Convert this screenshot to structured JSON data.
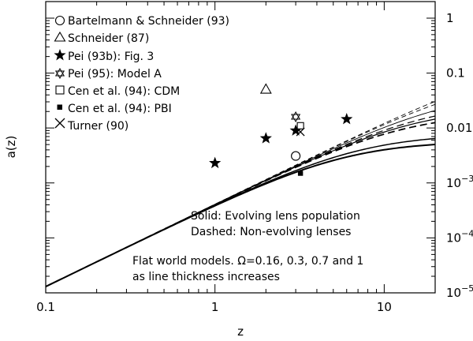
{
  "chart_data": {
    "type": "line",
    "x_scale": "log",
    "y_scale": "log",
    "xlim": [
      0.1,
      20
    ],
    "ylim": [
      1e-05,
      2
    ],
    "xlabel": "z",
    "ylabel": "a(z)",
    "x_ticks": [
      {
        "value": 0.1,
        "label": "0.1"
      },
      {
        "value": 1,
        "label": "1"
      },
      {
        "value": 10,
        "label": "10"
      }
    ],
    "y_ticks_right": [
      {
        "value": 1,
        "label": "1"
      },
      {
        "value": 0.1,
        "label": "0.1"
      },
      {
        "value": 0.01,
        "label": "0.01"
      },
      {
        "value": 0.001,
        "label": "10",
        "exp": "−3"
      },
      {
        "value": 0.0001,
        "label": "10",
        "exp": "−4"
      },
      {
        "value": 1e-05,
        "label": "10",
        "exp": "−5"
      }
    ],
    "series": [
      {
        "style": "dashed",
        "amplitude": 0.18,
        "alpha": 1.5
      },
      {
        "style": "dashed",
        "amplitude": 0.1,
        "alpha": 1.5
      },
      {
        "style": "dashed",
        "amplitude": 0.03,
        "alpha": 1.5
      },
      {
        "style": "dashed",
        "amplitude": 0.019,
        "alpha": 1.5
      },
      {
        "style": "solid",
        "amplitude": 0.048,
        "alpha": 1.5
      },
      {
        "style": "solid",
        "amplitude": 0.024,
        "alpha": 1.5
      },
      {
        "style": "solid",
        "amplitude": 0.0078,
        "alpha": 1.5
      },
      {
        "style": "solid",
        "amplitude": 0.0058,
        "alpha": 1.5
      }
    ],
    "points": [
      {
        "legend": "Bartelmann & Schneider (93)",
        "marker": "circle",
        "x": [
          3.0
        ],
        "y": [
          0.0031
        ]
      },
      {
        "legend": "Schneider (87)",
        "marker": "triangle",
        "x": [
          2.0
        ],
        "y": [
          0.05
        ]
      },
      {
        "legend": "Pei (93b): Fig. 3",
        "marker": "star",
        "x": [
          1.0,
          2.0,
          3.0,
          6.0
        ],
        "y": [
          0.0023,
          0.0065,
          0.009,
          0.0145
        ]
      },
      {
        "legend": "Pei (95): Model A",
        "marker": "hexagram",
        "x": [
          3.0
        ],
        "y": [
          0.016
        ]
      },
      {
        "legend": "Cen et al. (94): CDM",
        "marker": "open-square",
        "x": [
          3.2
        ],
        "y": [
          0.011
        ]
      },
      {
        "legend": "Cen et al. (94): PBI",
        "marker": "filled-square",
        "x": [
          3.2
        ],
        "y": [
          0.0015
        ]
      },
      {
        "legend": "Turner (90)",
        "marker": "cross",
        "x": [
          3.2
        ],
        "y": [
          0.0085
        ]
      }
    ],
    "annotations": [
      "Solid: Evolving lens population",
      "Dashed: Non-evolving lenses",
      "Flat world models. Ω=0.16, 0.3, 0.7 and 1",
      "as line thickness increases"
    ],
    "legend_position": "upper-left",
    "grid": false
  }
}
